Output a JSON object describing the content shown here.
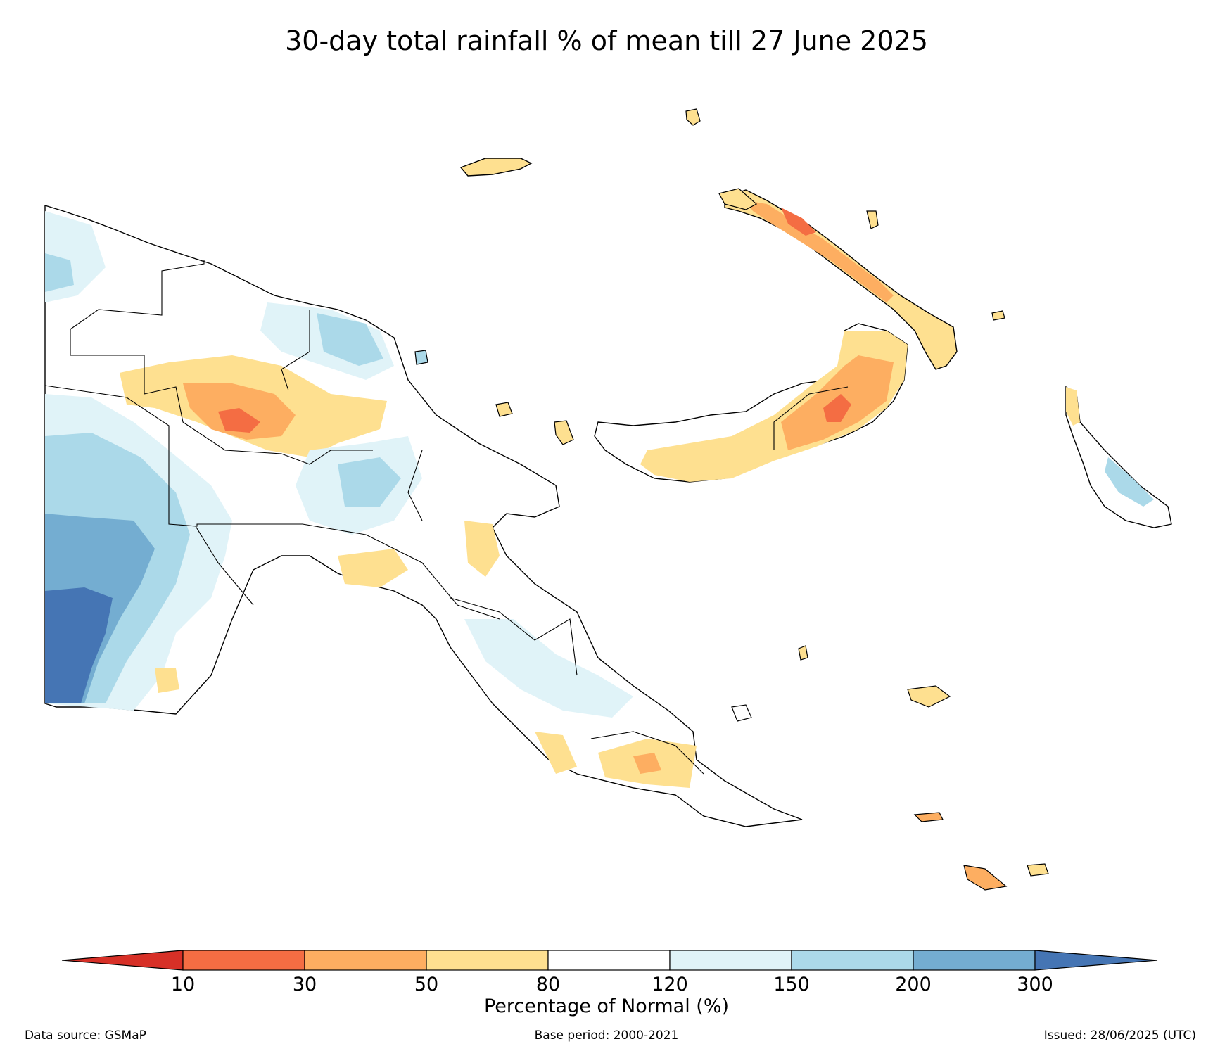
{
  "title": "30-day total rainfall % of mean till 27 June 2025",
  "colorbar": {
    "label": "Percentage of Normal (%)",
    "ticks": [
      "10",
      "30",
      "50",
      "80",
      "120",
      "150",
      "200",
      "300"
    ],
    "bins": [
      {
        "range": "<10",
        "color": "#d73027"
      },
      {
        "range": "10-30",
        "color": "#f46d43"
      },
      {
        "range": "30-50",
        "color": "#fdae61"
      },
      {
        "range": "50-80",
        "color": "#fee090"
      },
      {
        "range": "80-120",
        "color": "#ffffff"
      },
      {
        "range": "120-150",
        "color": "#e0f3f8"
      },
      {
        "range": "150-200",
        "color": "#abd9e9"
      },
      {
        "range": "200-300",
        "color": "#74add1"
      },
      {
        "range": ">300",
        "color": "#4575b4"
      }
    ]
  },
  "footer": {
    "source": "Data source: GSMaP",
    "base_period": "Base period: 2000-2021",
    "issued": "Issued: 28/06/2025 (UTC)"
  }
}
